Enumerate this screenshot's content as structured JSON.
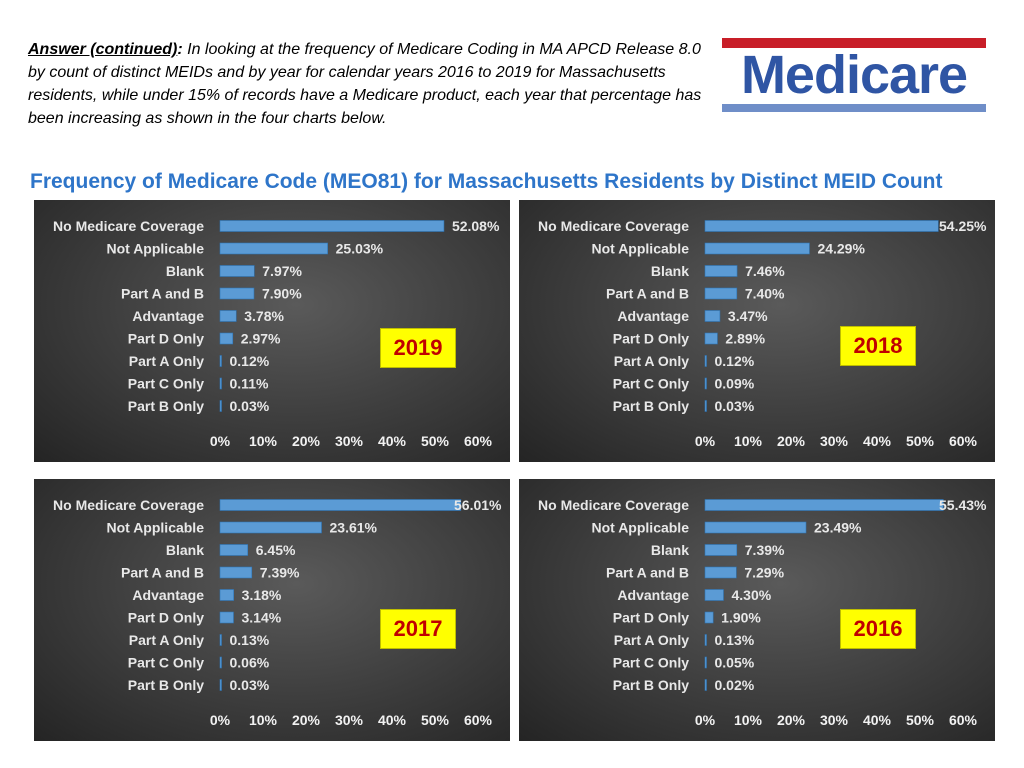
{
  "intro": {
    "lead": "Answer (continued)",
    "colon": ":",
    "text": " In looking at the frequency of Medicare Coding in MA APCD Release 8.0 by count of distinct MEIDs and by year for calendar years 2016 to 2019 for Massachusetts residents, while under 15% of records have a Medicare product, each year that percentage has been increasing as shown in the four charts below."
  },
  "logo": {
    "word": "Medicare"
  },
  "headline": "Frequency of Medicare Code (MEO81) for Massachusetts Residents by Distinct MEID Count",
  "colors": {
    "bar": "#5b9bd5",
    "bar_edge": "#2e75b6",
    "year_bg": "#ffff00",
    "year_text": "#c00000",
    "headline": "#2e75c9"
  },
  "chart_data": [
    {
      "type": "bar",
      "orientation": "horizontal",
      "year_label": "2019",
      "categories": [
        "No Medicare Coverage",
        "Not Applicable",
        "Blank",
        "Part A and B",
        "Advantage",
        "Part D Only",
        "Part A Only",
        "Part C Only",
        "Part B Only"
      ],
      "values": [
        52.08,
        25.03,
        7.97,
        7.9,
        3.78,
        2.97,
        0.12,
        0.11,
        0.03
      ],
      "labels": [
        "52.08%",
        "25.03%",
        "7.97%",
        "7.90%",
        "3.78%",
        "2.97%",
        "0.12%",
        "0.11%",
        "0.03%"
      ],
      "xlim": [
        0,
        60
      ],
      "xticks": [
        "0%",
        "10%",
        "20%",
        "30%",
        "40%",
        "50%",
        "60%"
      ]
    },
    {
      "type": "bar",
      "orientation": "horizontal",
      "year_label": "2018",
      "categories": [
        "No Medicare Coverage",
        "Not Applicable",
        "Blank",
        "Part A and B",
        "Advantage",
        "Part D Only",
        "Part A Only",
        "Part C Only",
        "Part B Only"
      ],
      "values": [
        54.25,
        24.29,
        7.46,
        7.4,
        3.47,
        2.89,
        0.12,
        0.09,
        0.03
      ],
      "labels": [
        "54.25%",
        "24.29%",
        "7.46%",
        "7.40%",
        "3.47%",
        "2.89%",
        "0.12%",
        "0.09%",
        "0.03%"
      ],
      "xlim": [
        0,
        60
      ],
      "xticks": [
        "0%",
        "10%",
        "20%",
        "30%",
        "40%",
        "50%",
        "60%"
      ]
    },
    {
      "type": "bar",
      "orientation": "horizontal",
      "year_label": "2017",
      "categories": [
        "No Medicare Coverage",
        "Not Applicable",
        "Blank",
        "Part A and B",
        "Advantage",
        "Part D Only",
        "Part A Only",
        "Part C Only",
        "Part B Only"
      ],
      "values": [
        56.01,
        23.61,
        6.45,
        7.39,
        3.18,
        3.14,
        0.13,
        0.06,
        0.03
      ],
      "labels": [
        "56.01%",
        "23.61%",
        "6.45%",
        "7.39%",
        "3.18%",
        "3.14%",
        "0.13%",
        "0.06%",
        "0.03%"
      ],
      "xlim": [
        0,
        60
      ],
      "xticks": [
        "0%",
        "10%",
        "20%",
        "30%",
        "40%",
        "50%",
        "60%"
      ]
    },
    {
      "type": "bar",
      "orientation": "horizontal",
      "year_label": "2016",
      "categories": [
        "No Medicare Coverage",
        "Not Applicable",
        "Blank",
        "Part A and B",
        "Advantage",
        "Part D Only",
        "Part A Only",
        "Part C Only",
        "Part B Only"
      ],
      "values": [
        55.43,
        23.49,
        7.39,
        7.29,
        4.3,
        1.9,
        0.13,
        0.05,
        0.02
      ],
      "labels": [
        "55.43%",
        "23.49%",
        "7.39%",
        "7.29%",
        "4.30%",
        "1.90%",
        "0.13%",
        "0.05%",
        "0.02%"
      ],
      "xlim": [
        0,
        60
      ],
      "xticks": [
        "0%",
        "10%",
        "20%",
        "30%",
        "40%",
        "50%",
        "60%"
      ]
    }
  ]
}
